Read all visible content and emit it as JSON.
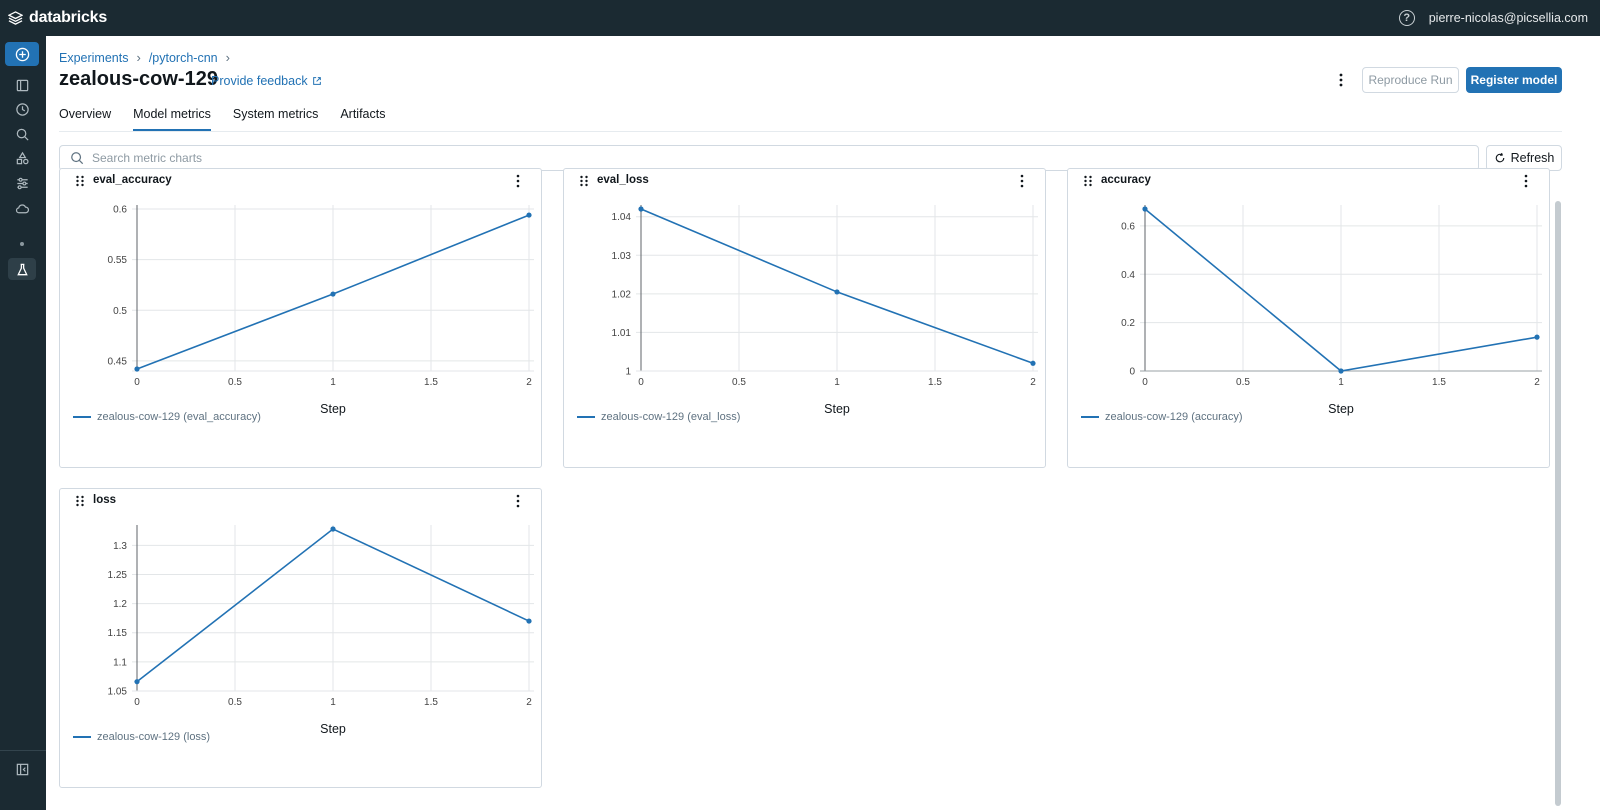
{
  "app": {
    "brand": "databricks",
    "user_email": "pierre-nicolas@picsellia.com"
  },
  "breadcrumb": {
    "items": [
      "Experiments",
      "/pytorch-cnn"
    ]
  },
  "run": {
    "title": "zealous-cow-129",
    "feedback_label": "Provide feedback"
  },
  "actions": {
    "reproduce_label": "Reproduce Run",
    "register_label": "Register model"
  },
  "tabs": [
    {
      "label": "Overview",
      "active": false
    },
    {
      "label": "Model metrics",
      "active": true
    },
    {
      "label": "System metrics",
      "active": false
    },
    {
      "label": "Artifacts",
      "active": false
    }
  ],
  "search": {
    "placeholder": "Search metric charts",
    "value": ""
  },
  "refresh_label": "Refresh",
  "colors": {
    "accent": "#2272b4",
    "topbar": "#1b2a32",
    "series": "#2272b4"
  },
  "chart_data": [
    {
      "type": "line",
      "title": "eval_accuracy",
      "xlabel": "Step",
      "ylabel": "",
      "x": [
        0,
        1,
        2
      ],
      "series": [
        {
          "name": "zealous-cow-129 (eval_accuracy)",
          "values": [
            0.442,
            0.516,
            0.594
          ]
        }
      ],
      "xlim": [
        0,
        2
      ],
      "ylim": [
        0.44,
        0.6
      ],
      "xticks": [
        "0",
        "0.5",
        "1",
        "1.5",
        "2"
      ],
      "yticks": [
        "0.45",
        "0.5",
        "0.55",
        "0.6"
      ],
      "ytick_values": [
        0.45,
        0.5,
        0.55,
        0.6
      ],
      "grid": true,
      "legend": "bottom-left"
    },
    {
      "type": "line",
      "title": "eval_loss",
      "xlabel": "Step",
      "ylabel": "",
      "x": [
        0,
        1,
        2
      ],
      "series": [
        {
          "name": "zealous-cow-129 (eval_loss)",
          "values": [
            1.042,
            1.0205,
            1.002
          ]
        }
      ],
      "xlim": [
        0,
        2
      ],
      "ylim": [
        1.0,
        1.042
      ],
      "xticks": [
        "0",
        "0.5",
        "1",
        "1.5",
        "2"
      ],
      "yticks": [
        "1",
        "1.01",
        "1.02",
        "1.03",
        "1.04"
      ],
      "ytick_values": [
        1.0,
        1.01,
        1.02,
        1.03,
        1.04
      ],
      "grid": true,
      "legend": "bottom-left"
    },
    {
      "type": "line",
      "title": "accuracy",
      "xlabel": "Step",
      "ylabel": "",
      "x": [
        0,
        1,
        2
      ],
      "series": [
        {
          "name": "zealous-cow-129 (accuracy)",
          "values": [
            0.67,
            0.0,
            0.14
          ]
        }
      ],
      "xlim": [
        0,
        2
      ],
      "ylim": [
        0,
        0.67
      ],
      "xticks": [
        "0",
        "0.5",
        "1",
        "1.5",
        "2"
      ],
      "yticks": [
        "0",
        "0.2",
        "0.4",
        "0.6"
      ],
      "ytick_values": [
        0,
        0.2,
        0.4,
        0.6
      ],
      "grid": true,
      "legend": "bottom-left"
    },
    {
      "type": "line",
      "title": "loss",
      "xlabel": "Step",
      "ylabel": "",
      "x": [
        0,
        1,
        2
      ],
      "series": [
        {
          "name": "zealous-cow-129 (loss)",
          "values": [
            1.066,
            1.328,
            1.17
          ]
        }
      ],
      "xlim": [
        0,
        2
      ],
      "ylim": [
        1.05,
        1.328
      ],
      "xticks": [
        "0",
        "0.5",
        "1",
        "1.5",
        "2"
      ],
      "yticks": [
        "1.05",
        "1.1",
        "1.15",
        "1.2",
        "1.25",
        "1.3"
      ],
      "ytick_values": [
        1.05,
        1.1,
        1.15,
        1.2,
        1.25,
        1.3
      ],
      "grid": true,
      "legend": "bottom-left"
    }
  ]
}
